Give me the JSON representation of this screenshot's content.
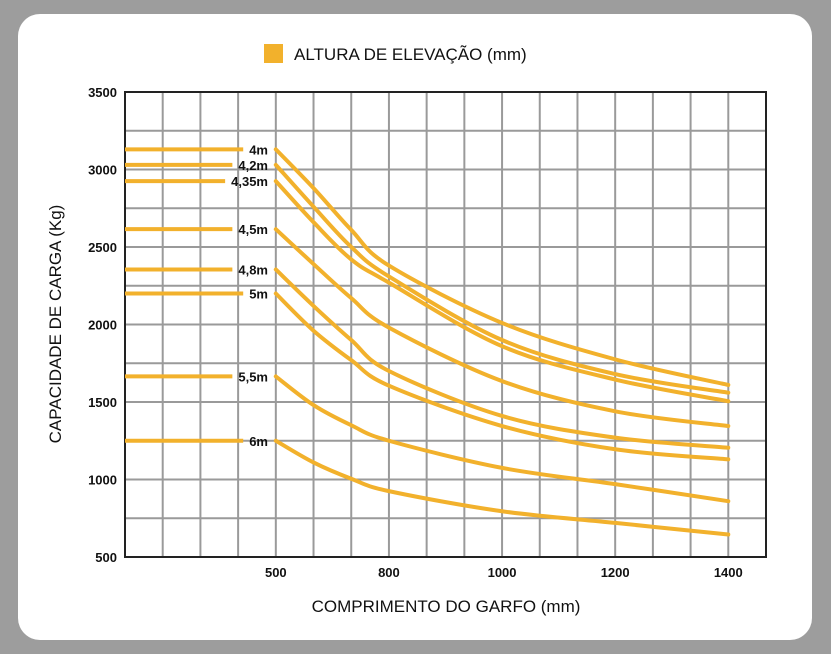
{
  "chart_data": {
    "type": "line",
    "legend": {
      "label": "ALTURA DE ELEVAÇÃO (mm)",
      "placement": "top-center",
      "color": "#f2b12c"
    },
    "xlabel": "COMPRIMENTO DO GARFO (mm)",
    "ylabel": "CAPACIDADE DE CARGA (Kg)",
    "x_ticks": [
      500,
      800,
      1000,
      1200,
      1400
    ],
    "y_ticks": [
      500,
      1000,
      1500,
      2000,
      2500,
      3000,
      3500
    ],
    "ylim": [
      500,
      3500
    ],
    "grid": true,
    "x": [
      500,
      600,
      700,
      800,
      1000,
      1200,
      1400
    ],
    "series": [
      {
        "name": "4m",
        "values": [
          3130,
          2880,
          2610,
          2380,
          2010,
          1775,
          1610
        ]
      },
      {
        "name": "4,2m",
        "values": [
          3030,
          2760,
          2500,
          2310,
          1900,
          1680,
          1560
        ]
      },
      {
        "name": "4,35m",
        "values": [
          2925,
          2660,
          2420,
          2270,
          1860,
          1645,
          1505
        ]
      },
      {
        "name": "4,5m",
        "values": [
          2615,
          2390,
          2170,
          1980,
          1635,
          1440,
          1345
        ]
      },
      {
        "name": "4,8m",
        "values": [
          2355,
          2120,
          1900,
          1700,
          1410,
          1270,
          1205
        ]
      },
      {
        "name": "5m",
        "values": [
          2200,
          1960,
          1770,
          1605,
          1345,
          1195,
          1130
        ]
      },
      {
        "name": "5,5m",
        "values": [
          1665,
          1480,
          1350,
          1250,
          1075,
          970,
          860
        ]
      },
      {
        "name": "6m",
        "values": [
          1250,
          1110,
          1005,
          925,
          795,
          720,
          645
        ]
      }
    ]
  }
}
